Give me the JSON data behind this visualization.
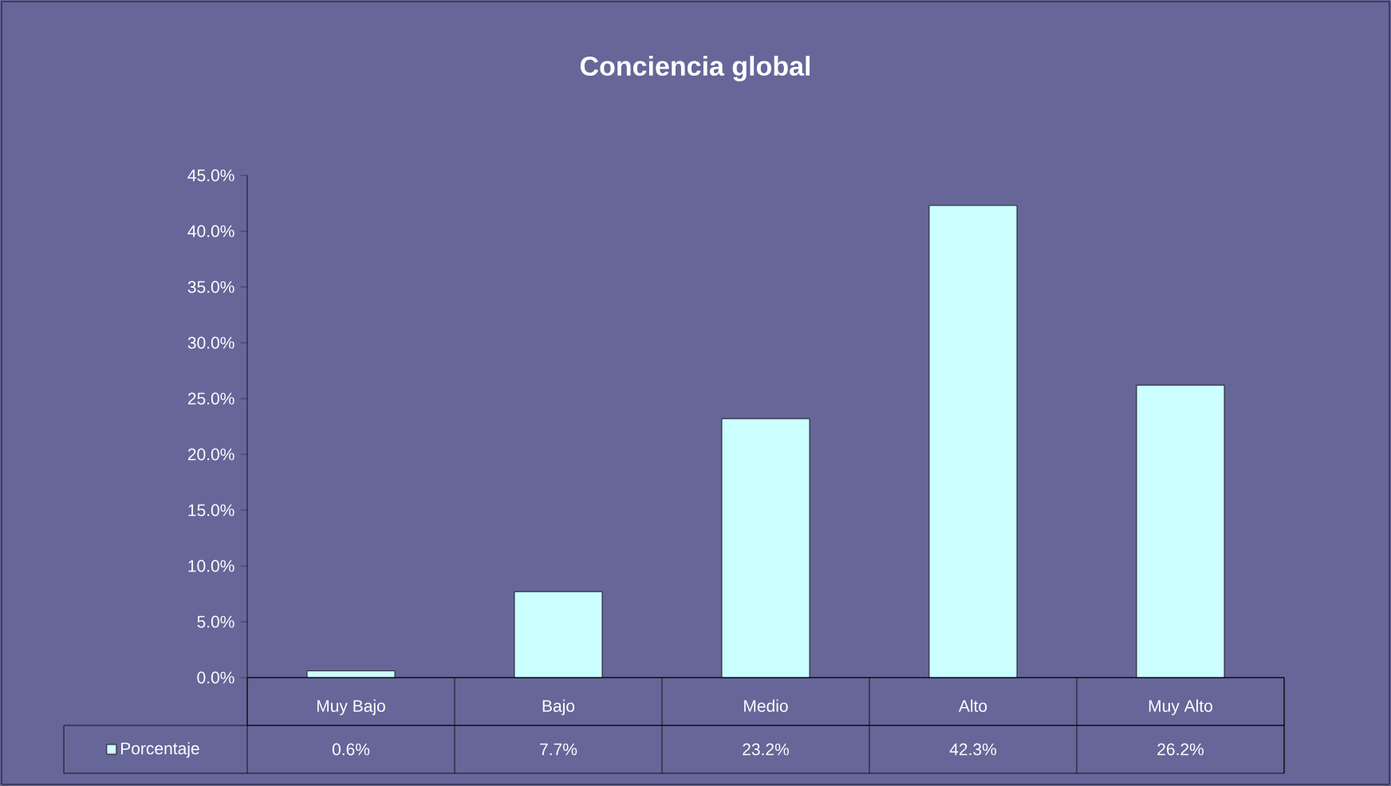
{
  "chart_data": {
    "type": "bar",
    "title": "Conciencia global",
    "categories": [
      "Muy Bajo",
      "Bajo",
      "Medio",
      "Alto",
      "Muy Alto"
    ],
    "series": [
      {
        "name": "Porcentaje",
        "color": "#ccffff",
        "values": [
          0.6,
          7.7,
          23.2,
          42.3,
          26.2
        ],
        "value_labels": [
          "0.6%",
          "7.7%",
          "23.2%",
          "42.3%",
          "26.2%"
        ]
      }
    ],
    "ylim": [
      0,
      45
    ],
    "yticks": [
      {
        "value": 0,
        "label": "0.0%"
      },
      {
        "value": 5,
        "label": "5.0%"
      },
      {
        "value": 10,
        "label": "10.0%"
      },
      {
        "value": 15,
        "label": "15.0%"
      },
      {
        "value": 20,
        "label": "20.0%"
      },
      {
        "value": 25,
        "label": "25.0%"
      },
      {
        "value": 30,
        "label": "30.0%"
      },
      {
        "value": 35,
        "label": "35.0%"
      },
      {
        "value": 40,
        "label": "40.0%"
      },
      {
        "value": 45,
        "label": "45.0%"
      }
    ],
    "legend": "bottom left",
    "grid": false
  }
}
